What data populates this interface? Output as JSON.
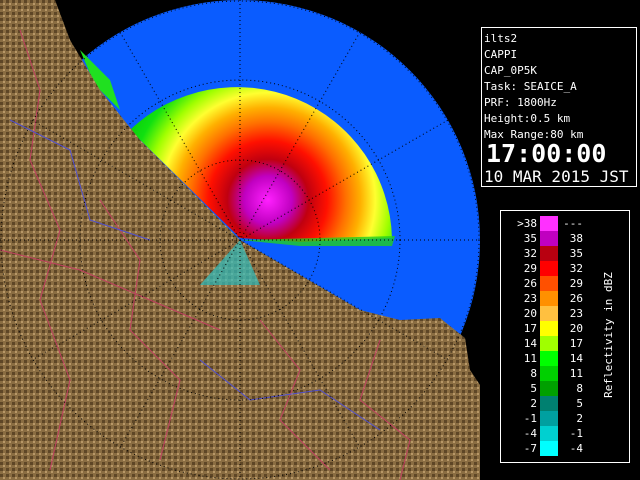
{
  "info": {
    "lines": [
      "ilts2",
      "CAPPI",
      "CAP_0P5K",
      "Task: SEAICE_A",
      "PRF: 1800Hz",
      "Height:0.5 km",
      "Max Range:80 km"
    ],
    "time": "17:00:00",
    "date": "10 MAR 2015 JST"
  },
  "legend": {
    "title": "Reflectivity in dBZ",
    "rows": [
      {
        "low": ">38",
        "high": "---",
        "color": "#ff30ff"
      },
      {
        "low": "35",
        "high": "38",
        "color": "#c000c0"
      },
      {
        "low": "32",
        "high": "35",
        "color": "#b80010"
      },
      {
        "low": "29",
        "high": "32",
        "color": "#ff0000"
      },
      {
        "low": "26",
        "high": "29",
        "color": "#ff5000"
      },
      {
        "low": "23",
        "high": "26",
        "color": "#ff9000"
      },
      {
        "low": "20",
        "high": "23",
        "color": "#ffc040"
      },
      {
        "low": "17",
        "high": "20",
        "color": "#ffff00"
      },
      {
        "low": "14",
        "high": "17",
        "color": "#a0ff00"
      },
      {
        "low": "11",
        "high": "14",
        "color": "#00ff00"
      },
      {
        "low": "8",
        "high": "11",
        "color": "#00d000"
      },
      {
        "low": "5",
        "high": "8",
        "color": "#00a000"
      },
      {
        "low": "2",
        "high": "5",
        "color": "#008070"
      },
      {
        "low": "-1",
        "high": "2",
        "color": "#00a0a0"
      },
      {
        "low": "-4",
        "high": "-1",
        "color": "#00d0d0"
      },
      {
        "low": "-7",
        "high": "-4",
        "color": "#00ffff"
      }
    ]
  }
}
